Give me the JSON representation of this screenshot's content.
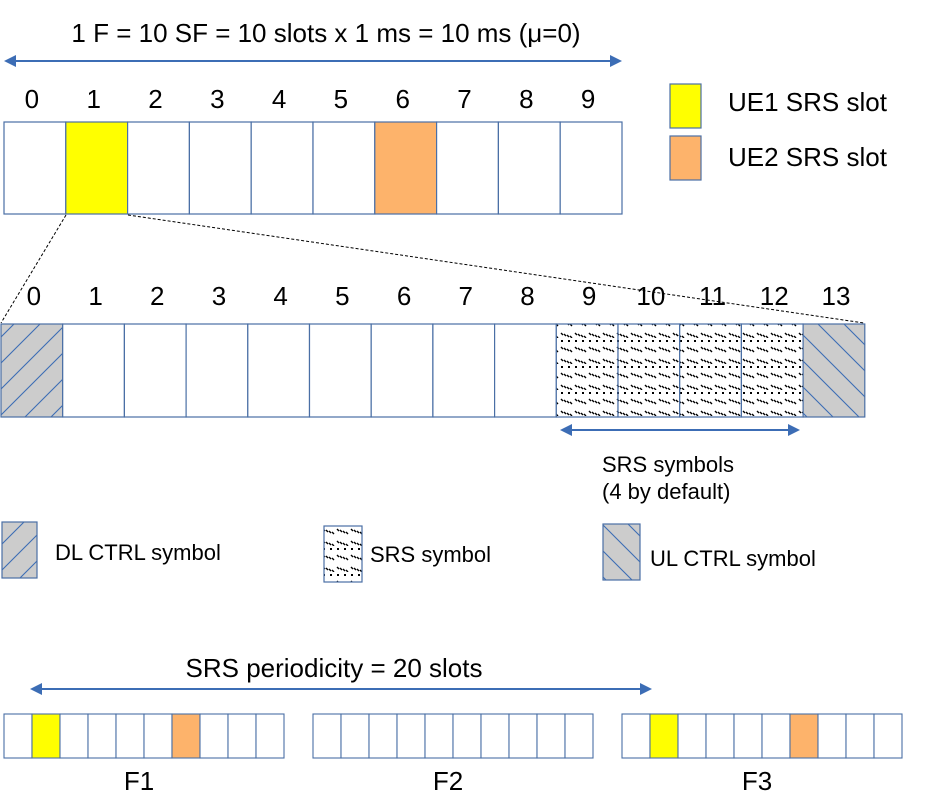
{
  "frame": {
    "title": "1 F = 10 SF = 10 slots x 1 ms = 10 ms (μ=0)",
    "slot_numbers": [
      "0",
      "1",
      "2",
      "3",
      "4",
      "5",
      "6",
      "7",
      "8",
      "9"
    ],
    "ue1_slot": 1,
    "ue2_slot": 6
  },
  "legend_slots": [
    {
      "label": "UE1 SRS slot",
      "color": "#FFFF00"
    },
    {
      "label": "UE2 SRS slot",
      "color": "#FDB36B"
    }
  ],
  "slot_detail": {
    "symbol_numbers": [
      "0",
      "1",
      "2",
      "3",
      "4",
      "5",
      "6",
      "7",
      "8",
      "9",
      "10",
      "11",
      "12",
      "13"
    ],
    "dl_ctrl_symbol": 0,
    "srs_symbols": [
      9,
      10,
      11,
      12
    ],
    "ul_ctrl_symbol": 13,
    "srs_span_label_line1": "SRS symbols",
    "srs_span_label_line2": "(4 by default)"
  },
  "legend_symbols": [
    {
      "key": "dl",
      "label": "DL CTRL symbol"
    },
    {
      "key": "srs",
      "label": "SRS symbol"
    },
    {
      "key": "ul",
      "label": "UL CTRL symbol"
    }
  ],
  "periodicity": {
    "label": "SRS periodicity = 20 slots",
    "frames": [
      {
        "name": "F1",
        "ue1_slot": 1,
        "ue2_slot": 6
      },
      {
        "name": "F2",
        "ue1_slot": null,
        "ue2_slot": null
      },
      {
        "name": "F3",
        "ue1_slot": 1,
        "ue2_slot": 6
      }
    ]
  },
  "colors": {
    "border": "#4A6FA5",
    "arrow": "#3C6DB5",
    "ue1": "#FFFF00",
    "ue2": "#FDB36B",
    "ctrl": "#CCCCCC"
  }
}
